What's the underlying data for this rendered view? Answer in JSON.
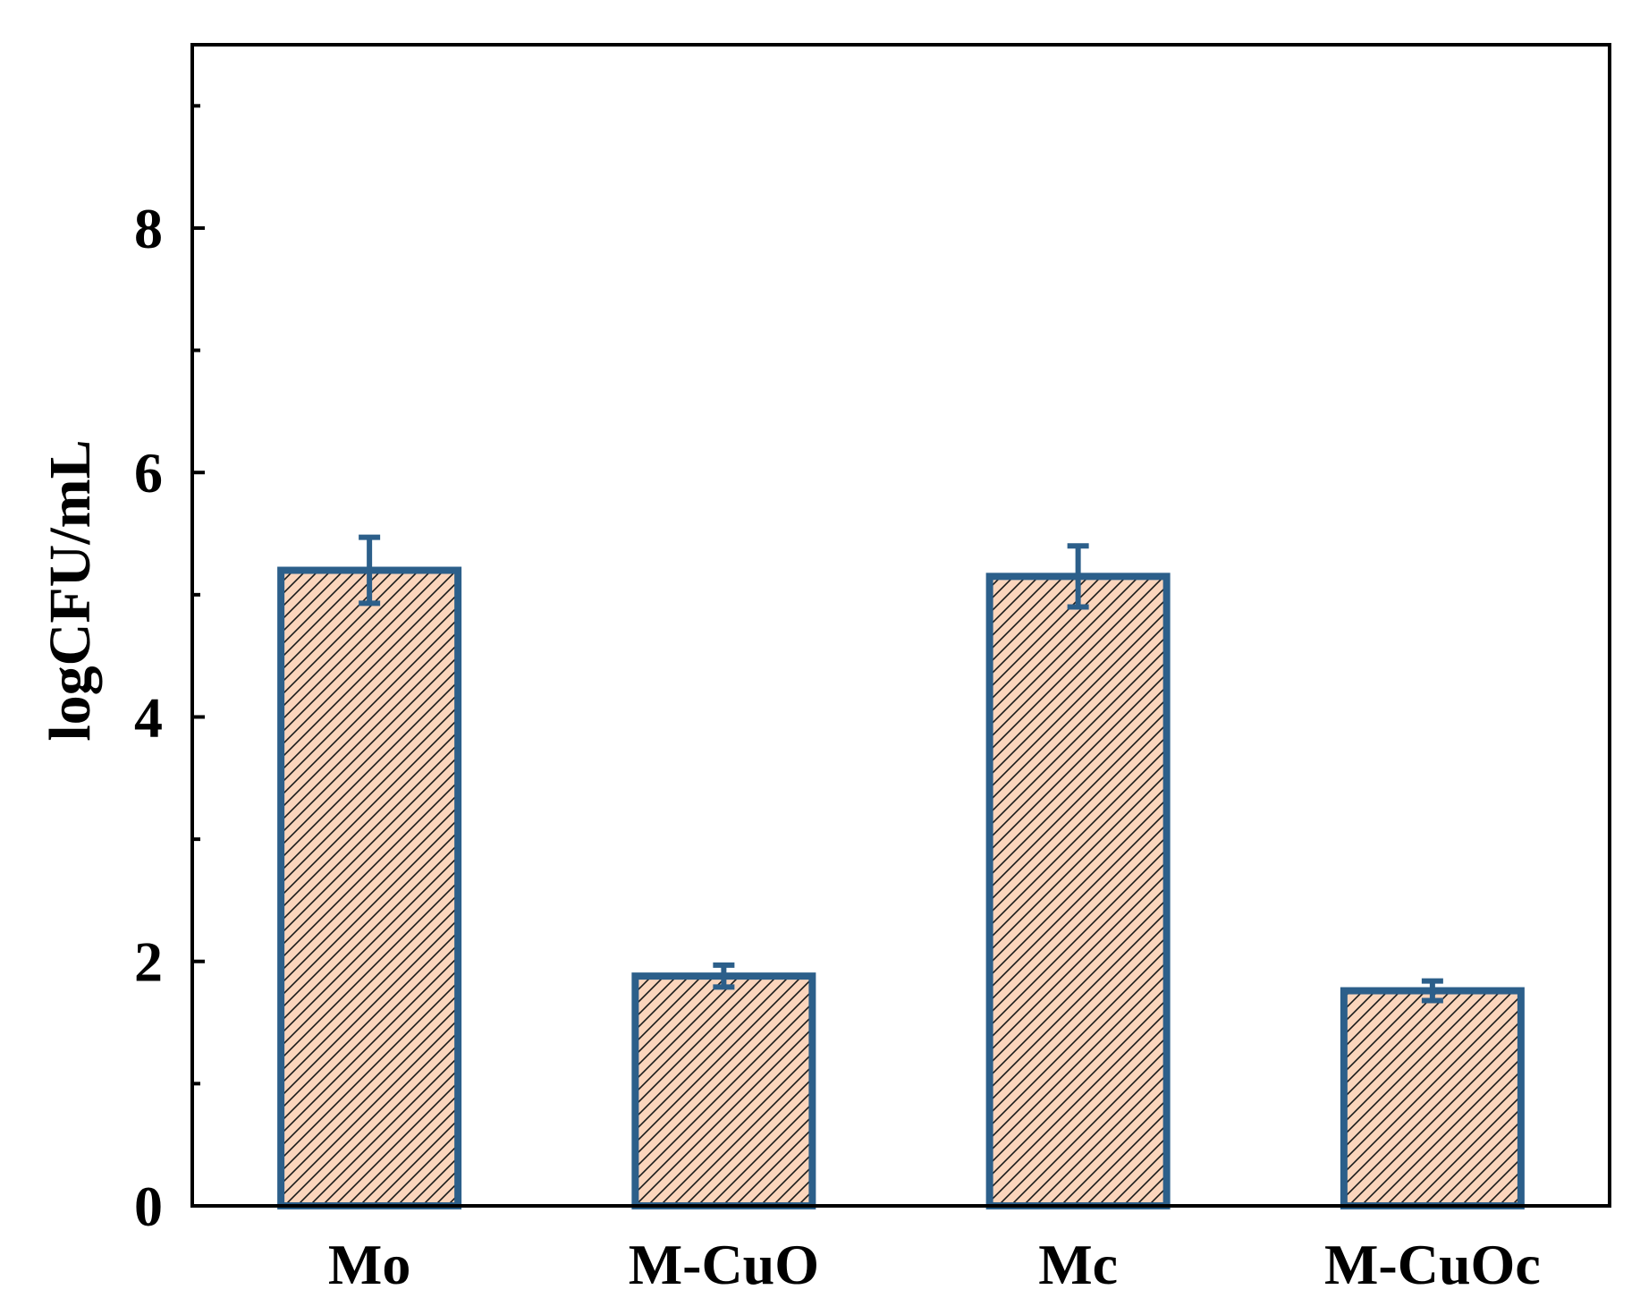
{
  "chart_data": {
    "type": "bar",
    "title": "",
    "xlabel": "",
    "ylabel": "logCFU/mL",
    "categories": [
      "Mo",
      "M-CuO",
      "Mc",
      "M-CuOc"
    ],
    "values": [
      5.2,
      1.88,
      5.15,
      1.76
    ],
    "errors": [
      0.27,
      0.09,
      0.25,
      0.08
    ],
    "ylim": [
      0,
      9.5
    ],
    "yticks": [
      0,
      2,
      4,
      6,
      8
    ],
    "yticks_minor": [
      1,
      3,
      5,
      7,
      9
    ],
    "grid": false,
    "legend": "none",
    "colors": {
      "bar_fill": "#fbd5bc",
      "bar_edge": "#2c5f8a",
      "hatch": "#1a1a1a",
      "error_bar": "#2c5f8a",
      "axis": "#000000"
    },
    "hatch": "diagonal"
  }
}
